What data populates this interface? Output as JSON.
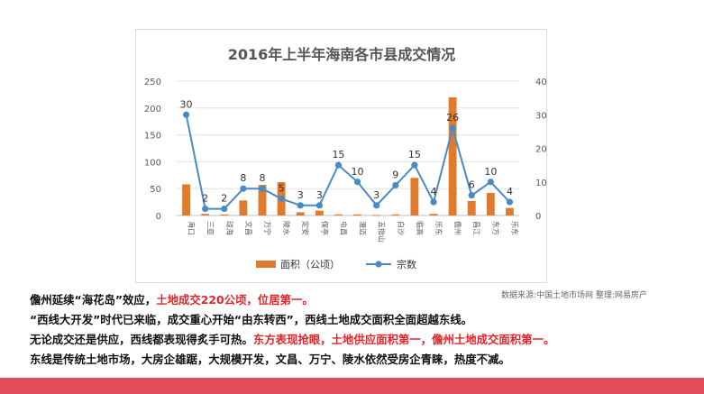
{
  "chart_data": {
    "type": "bar",
    "title": "2016年上半年海南各市县成交情况",
    "categories": [
      "海口",
      "三亚",
      "琼海",
      "文昌",
      "万宁",
      "陵水",
      "定安",
      "保亭",
      "屯昌",
      "澄迈",
      "五指山",
      "白沙",
      "临高",
      "乐东",
      "儋州",
      "昌江",
      "东方",
      "乐东"
    ],
    "series": [
      {
        "name": "面积（公顷）",
        "kind": "bar",
        "axis": "left",
        "color": "#e07b2e",
        "values": [
          58,
          3,
          2,
          28,
          57,
          62,
          6,
          9,
          2,
          2,
          1,
          2,
          70,
          3,
          220,
          27,
          42,
          14
        ]
      },
      {
        "name": "宗数",
        "kind": "line",
        "axis": "right",
        "color": "#4a8ac4",
        "values": [
          30,
          2,
          2,
          8,
          8,
          5,
          3,
          3,
          15,
          10,
          3,
          9,
          15,
          4,
          26,
          6,
          10,
          4
        ]
      }
    ],
    "ylim_left": [
      0,
      250
    ],
    "ylim_right": [
      0,
      40
    ],
    "yticks_left": [
      "0",
      "50",
      "100",
      "150",
      "200",
      "250"
    ],
    "yticks_right": [
      "0",
      "10",
      "20",
      "30",
      "40"
    ],
    "grid": true,
    "legend": "bottom"
  },
  "source_note": "数据来源:中国土地市场网 整理:网易房产",
  "paragraphs": {
    "p1_a": "儋州延续“海花岛”效应，",
    "p1_b": "土地成交220公顷，位居第一。",
    "p2": "“西线大开发”时代已来临，成交重心开始“由东转西”，西线土地成交面积全面超越东线。",
    "p3_a": "无论成交还是供应，西线都表现得炙手可热。",
    "p3_b": "东方表现抢眼，土地供应面积第一，儋州土地成交面积第一。",
    "p4": "东线是传统土地市场，大房企雄踞，大规模开发，文昌、万宁、陵水依然受房企青睐，热度不减。"
  },
  "colors": {
    "accent_bar": "#e24d5b",
    "highlight_text": "#e0262b"
  }
}
